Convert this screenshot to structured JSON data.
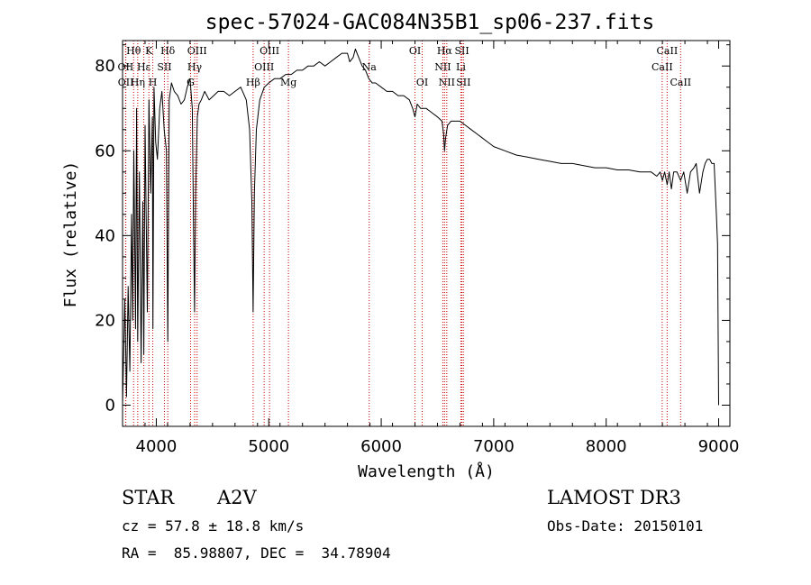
{
  "chart_data": {
    "type": "line",
    "title": "spec-57024-GAC084N35B1_sp06-237.fits",
    "xlabel": "Wavelength (Å)",
    "ylabel": "Flux (relative)",
    "xlim": [
      3700,
      9100
    ],
    "ylim": [
      -5,
      86
    ],
    "xticks": [
      4000,
      5000,
      6000,
      7000,
      8000,
      9000
    ],
    "yticks": [
      0,
      20,
      40,
      60,
      80
    ],
    "series": [
      {
        "name": "spectrum",
        "color": "#000000",
        "x": [
          3700,
          3720,
          3735,
          3750,
          3765,
          3780,
          3790,
          3800,
          3815,
          3825,
          3835,
          3850,
          3865,
          3880,
          3889,
          3900,
          3920,
          3935,
          3950,
          3965,
          3970,
          3980,
          3995,
          4010,
          4030,
          4050,
          4070,
          4090,
          4102,
          4115,
          4135,
          4160,
          4190,
          4220,
          4250,
          4275,
          4300,
          4320,
          4330,
          4340,
          4350,
          4365,
          4380,
          4400,
          4430,
          4470,
          4510,
          4550,
          4600,
          4650,
          4700,
          4750,
          4800,
          4830,
          4850,
          4861,
          4872,
          4890,
          4920,
          4960,
          5000,
          5050,
          5100,
          5150,
          5200,
          5250,
          5300,
          5350,
          5400,
          5450,
          5500,
          5550,
          5600,
          5650,
          5700,
          5720,
          5750,
          5770,
          5800,
          5830,
          5860,
          5890,
          5920,
          5950,
          6000,
          6050,
          6100,
          6150,
          6200,
          6250,
          6280,
          6300,
          6320,
          6350,
          6400,
          6450,
          6500,
          6540,
          6555,
          6563,
          6572,
          6590,
          6620,
          6660,
          6700,
          6750,
          6800,
          6850,
          6900,
          6950,
          7000,
          7100,
          7200,
          7300,
          7400,
          7500,
          7600,
          7700,
          7800,
          7900,
          8000,
          8100,
          8200,
          8300,
          8400,
          8450,
          8480,
          8500,
          8520,
          8542,
          8560,
          8580,
          8600,
          8630,
          8662,
          8690,
          8720,
          8750,
          8780,
          8800,
          8830,
          8860,
          8880,
          8900,
          8920,
          8940,
          8960,
          8980,
          8990,
          9000
        ],
        "y": [
          0,
          25,
          2,
          28,
          8,
          45,
          20,
          60,
          18,
          70,
          15,
          55,
          10,
          48,
          12,
          66,
          22,
          72,
          50,
          68,
          18,
          75,
          62,
          58,
          70,
          74,
          65,
          60,
          15,
          72,
          76,
          74,
          73,
          71,
          72,
          75,
          77,
          70,
          45,
          22,
          50,
          68,
          71,
          72,
          74,
          72,
          73,
          74,
          74,
          73,
          74,
          75,
          72,
          65,
          48,
          22,
          50,
          65,
          72,
          75,
          76,
          77,
          77,
          78,
          78,
          79,
          79,
          80,
          80,
          81,
          80,
          81,
          82,
          83,
          83,
          81,
          82,
          84,
          82,
          80,
          79,
          77,
          76,
          76,
          75,
          74,
          74,
          73,
          73,
          72,
          70,
          68,
          71,
          70,
          70,
          69,
          68,
          67,
          64,
          60,
          63,
          66,
          67,
          67,
          67,
          66,
          65,
          64,
          63,
          62,
          61,
          60,
          59,
          58.5,
          58,
          57.5,
          57,
          57,
          56.5,
          56,
          56,
          55.5,
          55.5,
          55,
          55,
          54,
          55,
          53,
          55,
          52,
          55,
          51,
          55,
          55,
          53,
          55,
          50,
          55,
          56,
          57,
          50,
          55,
          57,
          58,
          58,
          57,
          57,
          45,
          38,
          0
        ]
      }
    ],
    "lines": [
      {
        "label": "Hθ",
        "wavelength": 3798,
        "row": 0
      },
      {
        "label": "OII",
        "wavelength": 3727,
        "row": 1
      },
      {
        "label": "OII",
        "wavelength": 3729,
        "row": 2
      },
      {
        "label": "K",
        "wavelength": 3934,
        "row": 0
      },
      {
        "label": "Hη",
        "wavelength": 3835,
        "row": 2
      },
      {
        "label": "Hε",
        "wavelength": 3889,
        "row": 1
      },
      {
        "label": "H",
        "wavelength": 3969,
        "row": 2
      },
      {
        "label": "SII",
        "wavelength": 4072,
        "row": 1
      },
      {
        "label": "Hδ",
        "wavelength": 4102,
        "row": 0
      },
      {
        "label": "G",
        "wavelength": 4305,
        "row": 2
      },
      {
        "label": "Hγ",
        "wavelength": 4341,
        "row": 1
      },
      {
        "label": "OIII",
        "wavelength": 4363,
        "row": 0
      },
      {
        "label": "Hβ",
        "wavelength": 4861,
        "row": 2
      },
      {
        "label": "OIII",
        "wavelength": 4959,
        "row": 1
      },
      {
        "label": "OIII",
        "wavelength": 5007,
        "row": 0
      },
      {
        "label": "Mg",
        "wavelength": 5175,
        "row": 2
      },
      {
        "label": "Na",
        "wavelength": 5893,
        "row": 1
      },
      {
        "label": "OI",
        "wavelength": 6300,
        "row": 0
      },
      {
        "label": "OI",
        "wavelength": 6364,
        "row": 2
      },
      {
        "label": "NII",
        "wavelength": 6548,
        "row": 1
      },
      {
        "label": "Hα",
        "wavelength": 6563,
        "row": 0
      },
      {
        "label": "NII",
        "wavelength": 6583,
        "row": 2
      },
      {
        "label": "Li",
        "wavelength": 6708,
        "row": 1
      },
      {
        "label": "SII",
        "wavelength": 6717,
        "row": 0
      },
      {
        "label": "SII",
        "wavelength": 6731,
        "row": 2
      },
      {
        "label": "CaII",
        "wavelength": 8498,
        "row": 1
      },
      {
        "label": "CaII",
        "wavelength": 8542,
        "row": 0
      },
      {
        "label": "CaII",
        "wavelength": 8662,
        "row": 2
      }
    ]
  },
  "info": {
    "object_class": "STAR",
    "subclass": "A2V",
    "survey": "LAMOST DR3",
    "redshift_line": "cz = 57.8 ± 18.8 km/s",
    "obs_date_line": "Obs-Date: 20150101",
    "coords_line": "RA =  85.98807, DEC =  34.78904"
  },
  "colors": {
    "spectrum": "#000000",
    "line_marker": "#cc0000",
    "axes": "#000000",
    "background": "#ffffff"
  }
}
